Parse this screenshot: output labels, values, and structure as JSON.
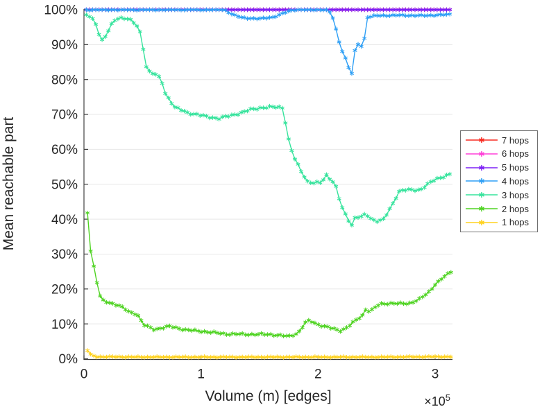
{
  "chart_data": {
    "type": "line",
    "title": "",
    "xlabel": "Volume (m) [edges]",
    "ylabel": "Mean reachable part",
    "x_multiplier_base": "×10",
    "x_multiplier_exp": "5",
    "xlim": [
      0,
      3.16
    ],
    "ylim": [
      0,
      100
    ],
    "x_unit_scale": "1e5",
    "grid": "horizontal",
    "legend_position": "right-outside",
    "marker": "*",
    "xticks": [
      {
        "v": 0,
        "label": "0"
      },
      {
        "v": 1,
        "label": "1"
      },
      {
        "v": 2,
        "label": "2"
      },
      {
        "v": 3,
        "label": "3"
      }
    ],
    "yticks": [
      {
        "v": 0,
        "label": "0%"
      },
      {
        "v": 10,
        "label": "10%"
      },
      {
        "v": 20,
        "label": "20%"
      },
      {
        "v": 30,
        "label": "30%"
      },
      {
        "v": 40,
        "label": "40%"
      },
      {
        "v": 50,
        "label": "50%"
      },
      {
        "v": 60,
        "label": "60%"
      },
      {
        "v": 70,
        "label": "70%"
      },
      {
        "v": 80,
        "label": "80%"
      },
      {
        "v": 90,
        "label": "90%"
      },
      {
        "v": 100,
        "label": "100%"
      }
    ],
    "style": {
      "axis_color": "#3f3f3f",
      "grid_color": "#e7e7e7",
      "tick_label_color": "#262626",
      "legend_border_color": "#707070",
      "background": "#ffffff"
    },
    "series": [
      {
        "name": "7 hops",
        "color": "#f92a20",
        "points": [
          [
            0.02,
            100
          ],
          [
            3.15,
            100
          ]
        ]
      },
      {
        "name": "6 hops",
        "color": "#ff3fd8",
        "points": [
          [
            0.02,
            100
          ],
          [
            3.15,
            100
          ]
        ]
      },
      {
        "name": "5 hops",
        "color": "#7d20f5",
        "points": [
          [
            0.02,
            100
          ],
          [
            3.15,
            100
          ]
        ]
      },
      {
        "name": "4 hops",
        "color": "#2e9ff5",
        "points": [
          [
            0.02,
            100
          ],
          [
            1.2,
            100
          ],
          [
            1.27,
            98.6
          ],
          [
            1.35,
            97.7
          ],
          [
            1.5,
            97.4
          ],
          [
            1.62,
            97.9
          ],
          [
            1.72,
            99.2
          ],
          [
            1.79,
            100
          ],
          [
            2.08,
            100
          ],
          [
            2.12,
            98.4
          ],
          [
            2.15,
            94.8
          ],
          [
            2.19,
            89.5
          ],
          [
            2.23,
            86.5
          ],
          [
            2.26,
            83.5
          ],
          [
            2.3,
            81.0
          ],
          [
            2.32,
            90.5
          ],
          [
            2.36,
            89.8
          ],
          [
            2.39,
            89.2
          ],
          [
            2.41,
            97.8
          ],
          [
            2.5,
            98.3
          ],
          [
            2.7,
            98.4
          ],
          [
            2.9,
            98.3
          ],
          [
            3.05,
            98.5
          ],
          [
            3.15,
            98.7
          ]
        ]
      },
      {
        "name": "3 hops",
        "color": "#35e39c",
        "points": [
          [
            0.02,
            98.5
          ],
          [
            0.06,
            97.8
          ],
          [
            0.1,
            96.0
          ],
          [
            0.13,
            93.0
          ],
          [
            0.16,
            91.0
          ],
          [
            0.2,
            93.5
          ],
          [
            0.25,
            96.5
          ],
          [
            0.28,
            97.4
          ],
          [
            0.33,
            97.7
          ],
          [
            0.38,
            97.5
          ],
          [
            0.42,
            96.4
          ],
          [
            0.46,
            95.0
          ],
          [
            0.49,
            92.5
          ],
          [
            0.51,
            88.0
          ],
          [
            0.53,
            84.0
          ],
          [
            0.56,
            82.3
          ],
          [
            0.62,
            81.3
          ],
          [
            0.66,
            79.9
          ],
          [
            0.7,
            75.5
          ],
          [
            0.74,
            74.0
          ],
          [
            0.77,
            72.2
          ],
          [
            0.82,
            71.4
          ],
          [
            0.88,
            70.5
          ],
          [
            0.97,
            70.0
          ],
          [
            1.05,
            69.3
          ],
          [
            1.15,
            68.9
          ],
          [
            1.25,
            69.6
          ],
          [
            1.33,
            70.4
          ],
          [
            1.43,
            71.4
          ],
          [
            1.52,
            72.0
          ],
          [
            1.62,
            72.1
          ],
          [
            1.7,
            72.0
          ],
          [
            1.72,
            68.0
          ],
          [
            1.75,
            62.4
          ],
          [
            1.79,
            58.0
          ],
          [
            1.82,
            56.0
          ],
          [
            1.86,
            53.5
          ],
          [
            1.91,
            50.8
          ],
          [
            1.97,
            50.3
          ],
          [
            2.03,
            50.5
          ],
          [
            2.07,
            52.7
          ],
          [
            2.13,
            50.7
          ],
          [
            2.16,
            48.7
          ],
          [
            2.19,
            44.5
          ],
          [
            2.23,
            41.5
          ],
          [
            2.26,
            39.8
          ],
          [
            2.29,
            38.3
          ],
          [
            2.32,
            40.8
          ],
          [
            2.36,
            40.5
          ],
          [
            2.41,
            41.4
          ],
          [
            2.46,
            39.9
          ],
          [
            2.51,
            39.5
          ],
          [
            2.56,
            39.9
          ],
          [
            2.6,
            42.1
          ],
          [
            2.64,
            44.5
          ],
          [
            2.69,
            48.0
          ],
          [
            2.74,
            48.4
          ],
          [
            2.8,
            48.3
          ],
          [
            2.87,
            48.4
          ],
          [
            2.94,
            50.1
          ],
          [
            3.0,
            51.3
          ],
          [
            3.06,
            52.1
          ],
          [
            3.15,
            53.2
          ]
        ]
      },
      {
        "name": "2 hops",
        "color": "#4ed321",
        "points": [
          [
            0.03,
            42.0
          ],
          [
            0.05,
            33.0
          ],
          [
            0.07,
            27.2
          ],
          [
            0.1,
            25.6
          ],
          [
            0.12,
            18.9
          ],
          [
            0.16,
            16.7
          ],
          [
            0.2,
            16.2
          ],
          [
            0.24,
            15.9
          ],
          [
            0.29,
            15.4
          ],
          [
            0.33,
            14.7
          ],
          [
            0.39,
            13.3
          ],
          [
            0.45,
            12.9
          ],
          [
            0.48,
            11.7
          ],
          [
            0.5,
            9.9
          ],
          [
            0.54,
            9.3
          ],
          [
            0.6,
            8.4
          ],
          [
            0.67,
            8.9
          ],
          [
            0.73,
            9.3
          ],
          [
            0.8,
            8.8
          ],
          [
            0.87,
            8.3
          ],
          [
            1.03,
            7.8
          ],
          [
            1.22,
            7.1
          ],
          [
            1.4,
            7.0
          ],
          [
            1.59,
            7.0
          ],
          [
            1.7,
            6.6
          ],
          [
            1.75,
            6.4
          ],
          [
            1.83,
            7.4
          ],
          [
            1.9,
            10.7
          ],
          [
            1.93,
            10.9
          ],
          [
            2.01,
            9.7
          ],
          [
            2.12,
            8.7
          ],
          [
            2.19,
            8.1
          ],
          [
            2.25,
            9.0
          ],
          [
            2.31,
            10.7
          ],
          [
            2.38,
            12.5
          ],
          [
            2.4,
            14.0
          ],
          [
            2.42,
            14.4
          ],
          [
            2.44,
            13.4
          ],
          [
            2.49,
            14.8
          ],
          [
            2.53,
            15.7
          ],
          [
            2.6,
            15.9
          ],
          [
            2.7,
            15.8
          ],
          [
            2.78,
            15.9
          ],
          [
            2.86,
            16.9
          ],
          [
            2.94,
            18.9
          ],
          [
            3.0,
            21.3
          ],
          [
            3.07,
            23.3
          ],
          [
            3.15,
            25.3
          ]
        ]
      },
      {
        "name": "1 hops",
        "color": "#ffd21e",
        "points": [
          [
            0.03,
            2.4
          ],
          [
            0.06,
            1.1
          ],
          [
            0.1,
            0.6
          ],
          [
            0.5,
            0.5
          ],
          [
            1.0,
            0.5
          ],
          [
            1.5,
            0.5
          ],
          [
            2.0,
            0.5
          ],
          [
            2.5,
            0.5
          ],
          [
            3.0,
            0.6
          ],
          [
            3.15,
            0.6
          ]
        ]
      }
    ]
  }
}
